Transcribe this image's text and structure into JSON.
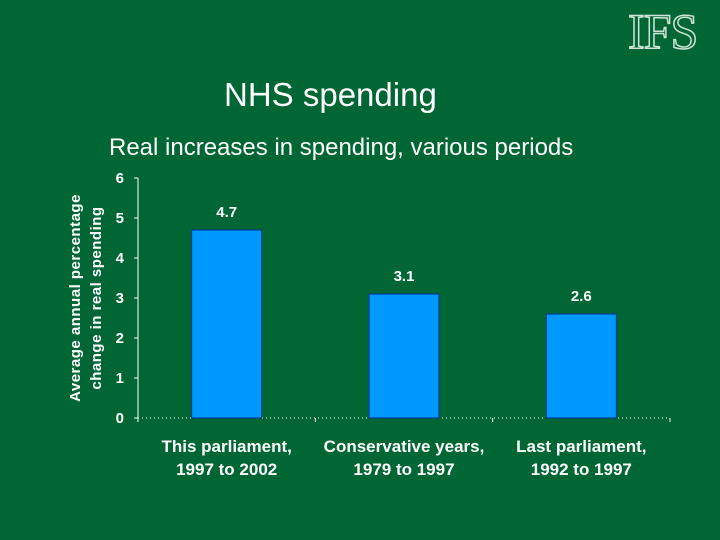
{
  "logo": {
    "text": "IFS"
  },
  "header": {
    "title": "NHS spending",
    "subtitle": "Real increases in spending, various periods"
  },
  "colors": {
    "background": "#006633",
    "bar": "#0099FF",
    "text": "#FFFFFF"
  },
  "chart_data": {
    "type": "bar",
    "title": "NHS spending",
    "subtitle": "Real increases in spending, various periods",
    "ylabel_lines": [
      "Average annual percentage",
      "change in real spending"
    ],
    "xlabel": "",
    "categories": [
      [
        "This parliament,",
        "1997 to 2002"
      ],
      [
        "Conservative years,",
        "1979 to 1997"
      ],
      [
        "Last parliament,",
        "1992 to 1997"
      ]
    ],
    "values": [
      4.7,
      3.1,
      2.6
    ],
    "data_labels": [
      "4.7",
      "3.1",
      "2.6"
    ],
    "ylim": [
      0,
      6
    ],
    "yticks": [
      0,
      1,
      2,
      3,
      4,
      5,
      6
    ],
    "grid": false,
    "legend": "none"
  }
}
